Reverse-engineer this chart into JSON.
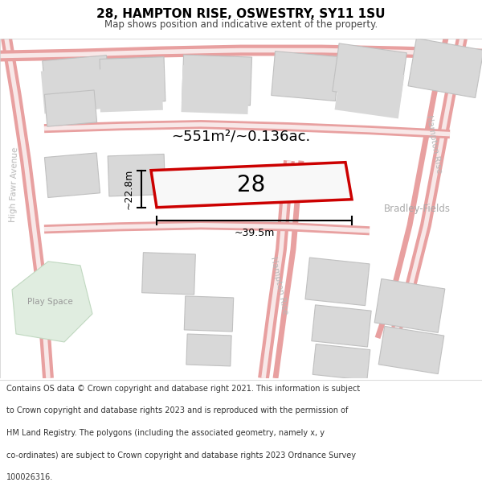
{
  "title": "28, HAMPTON RISE, OSWESTRY, SY11 1SU",
  "subtitle": "Map shows position and indicative extent of the property.",
  "footer_lines": [
    "Contains OS data © Crown copyright and database right 2021. This information is subject",
    "to Crown copyright and database rights 2023 and is reproduced with the permission of",
    "HM Land Registry. The polygons (including the associated geometry, namely x, y",
    "co-ordinates) are subject to Crown copyright and database rights 2023 Ordnance Survey",
    "100026316."
  ],
  "area_label": "~551m²/~0.136ac.",
  "width_label": "~39.5m",
  "height_label": "~22.8m",
  "plot_number": "28",
  "road_color": "#e8a0a0",
  "road_color_light": "#f0c0c0",
  "building_color": "#d8d8d8",
  "building_edge": "#c0c0c0",
  "plot_fill": "#f8f8f8",
  "plot_edge": "#cc0000",
  "green_color": "#e0ede0",
  "green_edge": "#c0d8c0",
  "street_label_color": "#b8b8b8",
  "bradley_color": "#aaaaaa",
  "white": "#ffffff",
  "black": "#000000"
}
